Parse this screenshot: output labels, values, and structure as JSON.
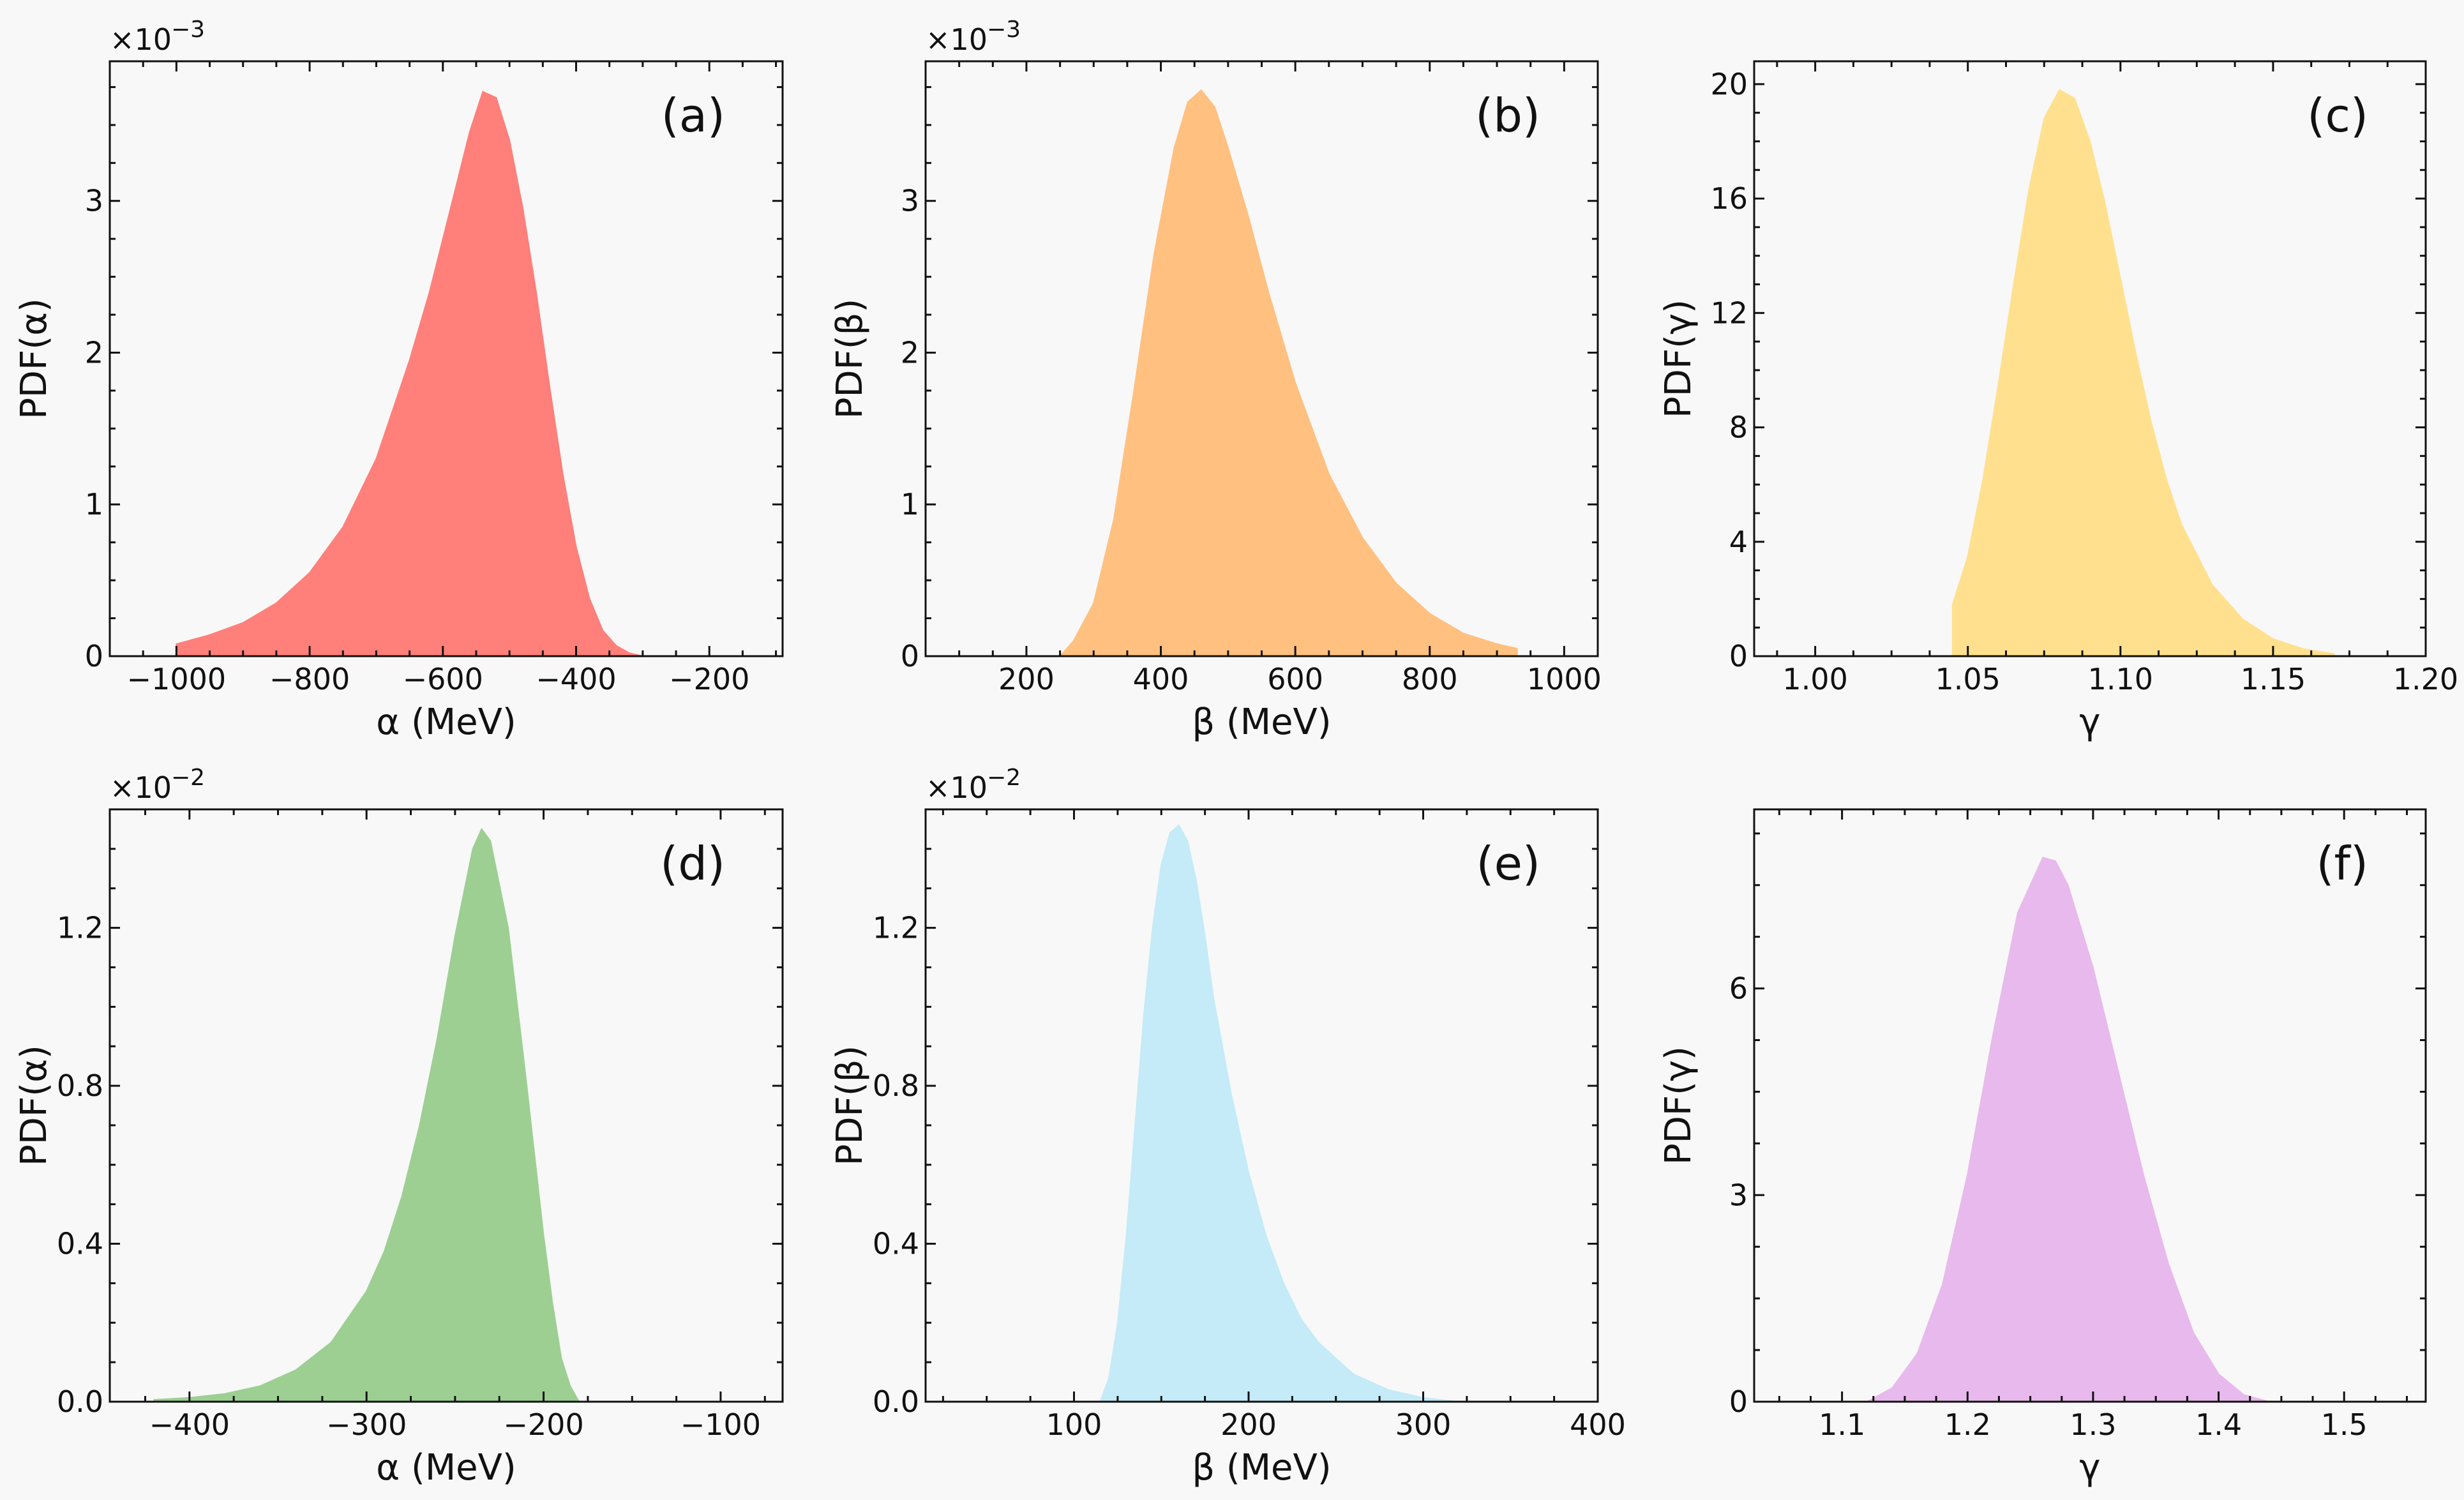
{
  "chart_data": [
    {
      "type": "area",
      "panel_label": "(a)",
      "color": "#ff7f7a",
      "xlabel": "α (MeV)",
      "ylabel": "PDF(α)",
      "y_multiplier_label": "×10",
      "y_multiplier_exp": "−3",
      "xlim": [
        -1100,
        -90
      ],
      "ylim": [
        0,
        3.92
      ],
      "xticks": [
        -1000,
        -800,
        -600,
        -400,
        -200
      ],
      "xtick_labels": [
        "−1000",
        "−800",
        "−600",
        "−400",
        "−200"
      ],
      "yticks": [
        0,
        1,
        2,
        3
      ],
      "ytick_labels": [
        "0",
        "1",
        "2",
        "3"
      ],
      "x": [
        -1000,
        -950,
        -900,
        -850,
        -800,
        -750,
        -700,
        -650,
        -620,
        -600,
        -580,
        -560,
        -540,
        -520,
        -500,
        -480,
        -460,
        -440,
        -420,
        -400,
        -380,
        -360,
        -340,
        -320,
        -300
      ],
      "y": [
        0.08,
        0.14,
        0.22,
        0.35,
        0.55,
        0.85,
        1.3,
        1.95,
        2.4,
        2.75,
        3.1,
        3.45,
        3.72,
        3.68,
        3.4,
        2.95,
        2.4,
        1.78,
        1.2,
        0.72,
        0.38,
        0.17,
        0.07,
        0.02,
        0.0
      ]
    },
    {
      "type": "area",
      "panel_label": "(b)",
      "color": "#ffc080",
      "xlabel": "β (MeV)",
      "ylabel": "PDF(β)",
      "y_multiplier_label": "×10",
      "y_multiplier_exp": "−3",
      "xlim": [
        50,
        1050
      ],
      "ylim": [
        0,
        3.92
      ],
      "xticks": [
        200,
        400,
        600,
        800,
        1000
      ],
      "xtick_labels": [
        "200",
        "400",
        "600",
        "800",
        "1000"
      ],
      "yticks": [
        0,
        1,
        2,
        3
      ],
      "ytick_labels": [
        "0",
        "1",
        "2",
        "3"
      ],
      "x": [
        250,
        270,
        300,
        330,
        360,
        390,
        420,
        440,
        460,
        480,
        500,
        530,
        560,
        600,
        650,
        700,
        750,
        800,
        850,
        900,
        930
      ],
      "y": [
        0.0,
        0.1,
        0.35,
        0.9,
        1.75,
        2.65,
        3.35,
        3.65,
        3.73,
        3.62,
        3.35,
        2.9,
        2.4,
        1.8,
        1.2,
        0.78,
        0.48,
        0.28,
        0.15,
        0.08,
        0.05
      ]
    },
    {
      "type": "area",
      "panel_label": "(c)",
      "color": "#ffe08e",
      "xlabel": "γ",
      "ylabel": "PDF(γ)",
      "y_multiplier_label": "",
      "y_multiplier_exp": "",
      "xlim": [
        0.98,
        1.2
      ],
      "ylim": [
        0,
        20.8
      ],
      "xticks": [
        1.0,
        1.05,
        1.1,
        1.15,
        1.2
      ],
      "xtick_labels": [
        "1.00",
        "1.05",
        "1.10",
        "1.15",
        "1.20"
      ],
      "yticks": [
        0,
        4,
        8,
        12,
        16,
        20
      ],
      "ytick_labels": [
        "0",
        "4",
        "8",
        "12",
        "16",
        "20"
      ],
      "x": [
        1.045,
        1.05,
        1.055,
        1.06,
        1.065,
        1.07,
        1.075,
        1.08,
        1.085,
        1.09,
        1.095,
        1.1,
        1.105,
        1.11,
        1.115,
        1.12,
        1.13,
        1.14,
        1.15,
        1.16,
        1.17
      ],
      "y": [
        1.8,
        3.5,
        6.2,
        9.5,
        13.0,
        16.3,
        18.8,
        19.8,
        19.5,
        18.0,
        15.8,
        13.2,
        10.6,
        8.2,
        6.2,
        4.6,
        2.5,
        1.3,
        0.6,
        0.25,
        0.08
      ]
    },
    {
      "type": "area",
      "panel_label": "(d)",
      "color": "#9dcf93",
      "xlabel": "α (MeV)",
      "ylabel": "PDF(α)",
      "y_multiplier_label": "×10",
      "y_multiplier_exp": "−2",
      "xlim": [
        -445,
        -65
      ],
      "ylim": [
        0,
        1.5
      ],
      "xticks": [
        -400,
        -300,
        -200,
        -100
      ],
      "xtick_labels": [
        "−400",
        "−300",
        "−200",
        "−100"
      ],
      "yticks": [
        0,
        0.4,
        0.8,
        1.2
      ],
      "ytick_labels": [
        "0.0",
        "0.4",
        "0.8",
        "1.2"
      ],
      "x": [
        -420,
        -400,
        -380,
        -360,
        -340,
        -320,
        -300,
        -290,
        -280,
        -270,
        -260,
        -250,
        -240,
        -235,
        -230,
        -220,
        -210,
        -200,
        -195,
        -190,
        -185,
        -180
      ],
      "y": [
        0.005,
        0.01,
        0.02,
        0.04,
        0.08,
        0.15,
        0.28,
        0.38,
        0.52,
        0.7,
        0.92,
        1.18,
        1.4,
        1.45,
        1.42,
        1.2,
        0.82,
        0.42,
        0.25,
        0.11,
        0.04,
        0.0
      ]
    },
    {
      "type": "area",
      "panel_label": "(e)",
      "color": "#c4ebf7",
      "xlabel": "β (MeV)",
      "ylabel": "PDF(β)",
      "y_multiplier_label": "×10",
      "y_multiplier_exp": "−2",
      "xlim": [
        15,
        400
      ],
      "ylim": [
        0,
        1.5
      ],
      "xticks": [
        100,
        200,
        300,
        400
      ],
      "xtick_labels": [
        "100",
        "200",
        "300",
        "400"
      ],
      "yticks": [
        0,
        0.4,
        0.8,
        1.2
      ],
      "ytick_labels": [
        "0.0",
        "0.4",
        "0.8",
        "1.2"
      ],
      "x": [
        115,
        120,
        125,
        130,
        135,
        140,
        145,
        150,
        155,
        160,
        165,
        170,
        175,
        180,
        190,
        200,
        210,
        220,
        230,
        240,
        260,
        280,
        300,
        320
      ],
      "y": [
        0.0,
        0.06,
        0.2,
        0.42,
        0.7,
        0.98,
        1.2,
        1.36,
        1.44,
        1.46,
        1.42,
        1.32,
        1.18,
        1.02,
        0.78,
        0.58,
        0.42,
        0.3,
        0.21,
        0.15,
        0.07,
        0.03,
        0.01,
        0.0
      ]
    },
    {
      "type": "area",
      "panel_label": "(f)",
      "color": "#e8b9ec",
      "xlabel": "γ",
      "ylabel": "PDF(γ)",
      "y_multiplier_label": "",
      "y_multiplier_exp": "",
      "xlim": [
        1.03,
        1.565
      ],
      "ylim": [
        0,
        8.6
      ],
      "xticks": [
        1.1,
        1.2,
        1.3,
        1.4,
        1.5
      ],
      "xtick_labels": [
        "1.1",
        "1.2",
        "1.3",
        "1.4",
        "1.5"
      ],
      "yticks": [
        0,
        3,
        6
      ],
      "ytick_labels": [
        "0",
        "3",
        "6"
      ],
      "x": [
        1.12,
        1.14,
        1.16,
        1.18,
        1.2,
        1.22,
        1.24,
        1.26,
        1.27,
        1.28,
        1.3,
        1.32,
        1.34,
        1.36,
        1.38,
        1.4,
        1.42,
        1.44
      ],
      "y": [
        0.0,
        0.2,
        0.7,
        1.7,
        3.3,
        5.3,
        7.1,
        7.9,
        7.85,
        7.5,
        6.3,
        4.8,
        3.3,
        2.0,
        1.0,
        0.4,
        0.1,
        0.0
      ]
    }
  ]
}
